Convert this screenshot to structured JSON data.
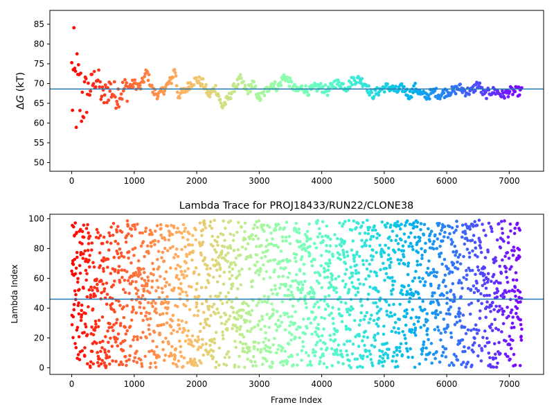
{
  "chart_data": [
    {
      "type": "scatter",
      "title": "",
      "xlabel": "",
      "ylabel": "ΔG (kT)",
      "ylabel_parts": {
        "delta": "Δ",
        "var": "G",
        "unit": " (kT)"
      },
      "xlim": [
        -350,
        7550
      ],
      "ylim": [
        47.8,
        88.5
      ],
      "xticks": [
        0,
        1000,
        2000,
        3000,
        4000,
        5000,
        6000,
        7000
      ],
      "yticks": [
        50,
        55,
        60,
        65,
        70,
        75,
        80,
        85
      ],
      "hline": {
        "y": 68.6,
        "color": "#1f77b4"
      },
      "colormap": "rainbow (red → purple with increasing frame index)",
      "n_frames": 7200,
      "series": [
        {
          "x": [
            0,
            100,
            200,
            300,
            400,
            500,
            600,
            700,
            800,
            900,
            1000,
            1100,
            1200,
            1300,
            1400,
            1500,
            1600,
            1650,
            1700,
            1800,
            1900,
            2000,
            2100,
            2200,
            2300,
            2350,
            2400,
            2500,
            2600,
            2700,
            2800,
            2900,
            3000,
            3100,
            3200,
            3300,
            3400,
            3500,
            3600,
            3700,
            3800,
            3900,
            4000,
            4100,
            4200,
            4300,
            4400,
            4500,
            4600,
            4700,
            4800,
            4900,
            5000,
            5100,
            5200,
            5300,
            5400,
            5500,
            5600,
            5700,
            5800,
            5900,
            6000,
            6100,
            6200,
            6300,
            6400,
            6500,
            6600,
            6700,
            6800,
            6900,
            7000,
            7100,
            7200
          ],
          "y": [
            70,
            67,
            66,
            69,
            72,
            66,
            69,
            67,
            68,
            69,
            70,
            69,
            73,
            68,
            67,
            69,
            71,
            74,
            67,
            68,
            70,
            71,
            70,
            67,
            69,
            67,
            64,
            66,
            69,
            71,
            68,
            70,
            66,
            68,
            70,
            69,
            72,
            70,
            68,
            69,
            68,
            69,
            69,
            68,
            70,
            70,
            69,
            71,
            71,
            70,
            67,
            68,
            69,
            69,
            68,
            69,
            67,
            69,
            67,
            67,
            68,
            67,
            68,
            68,
            69,
            68,
            68,
            70,
            67,
            68,
            68,
            67,
            68,
            68,
            68
          ]
        }
      ]
    },
    {
      "type": "scatter",
      "title": "Lambda Trace for PROJ18433/RUN22/CLONE38",
      "xlabel": "Frame Index",
      "ylabel": "Lambda Index",
      "xlim": [
        -350,
        7550
      ],
      "ylim": [
        -4.5,
        103
      ],
      "xticks": [
        0,
        1000,
        2000,
        3000,
        4000,
        5000,
        6000,
        7000
      ],
      "yticks": [
        0,
        20,
        40,
        60,
        80,
        100
      ],
      "hline": {
        "y": 46,
        "color": "#1f77b4"
      },
      "colormap": "rainbow (red → purple with increasing frame index)",
      "n_frames": 7200,
      "series": [
        {
          "x": [
            0,
            500,
            1000,
            1500,
            2000,
            2500,
            3000,
            3500,
            4000,
            4500,
            5000,
            5500,
            6000,
            6500,
            7000,
            7200
          ],
          "y": [
            55,
            40,
            65,
            30,
            70,
            45,
            80,
            20,
            60,
            35,
            75,
            15,
            50,
            85,
            25,
            40
          ],
          "range": [
            0,
            99
          ]
        }
      ]
    }
  ]
}
